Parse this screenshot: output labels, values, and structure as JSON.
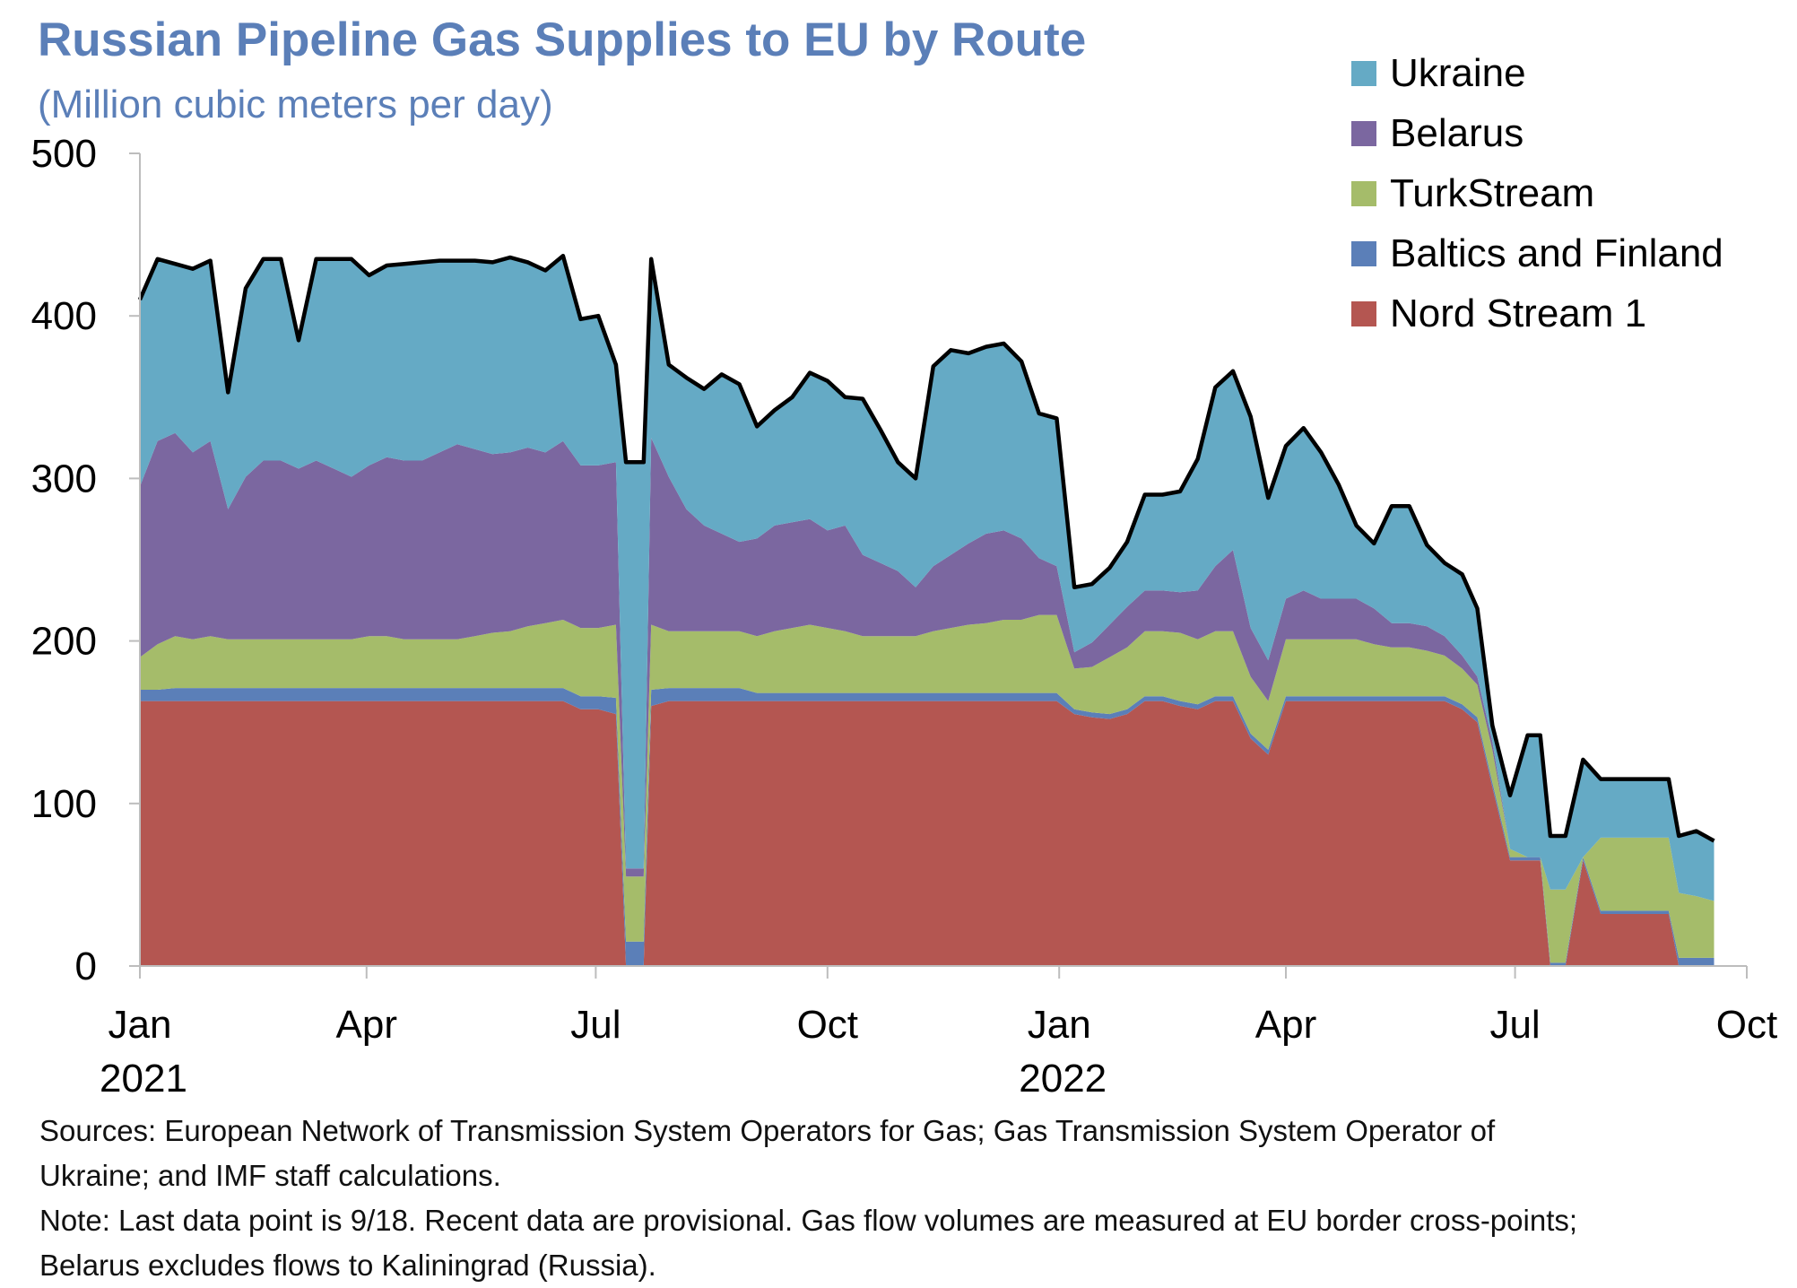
{
  "chart_data": {
    "type": "area",
    "stacked": true,
    "title": "Russian Pipeline Gas Supplies to EU by Route",
    "subtitle": "(Million cubic meters per day)",
    "ylim": [
      0,
      500
    ],
    "yticks": [
      0,
      100,
      200,
      300,
      400,
      500
    ],
    "xlim": [
      "2021-01-01",
      "2022-10-01"
    ],
    "xticks": [
      {
        "date": "2021-01-01",
        "label": "Jan",
        "year": "2021"
      },
      {
        "date": "2021-04-01",
        "label": "Apr",
        "year": ""
      },
      {
        "date": "2021-07-01",
        "label": "Jul",
        "year": ""
      },
      {
        "date": "2021-10-01",
        "label": "Oct",
        "year": ""
      },
      {
        "date": "2022-01-01",
        "label": "Jan",
        "year": "2022"
      },
      {
        "date": "2022-04-01",
        "label": "Apr",
        "year": ""
      },
      {
        "date": "2022-07-01",
        "label": "Jul",
        "year": ""
      },
      {
        "date": "2022-10-01",
        "label": "Oct",
        "year": ""
      }
    ],
    "grid": false,
    "legend_position": "top-right",
    "legend_order": [
      "Ukraine",
      "Belarus",
      "TurkStream",
      "Baltics and Finland",
      "Nord Stream 1"
    ],
    "x": [
      "2021-01-01",
      "2021-01-08",
      "2021-01-15",
      "2021-01-22",
      "2021-01-29",
      "2021-02-05",
      "2021-02-12",
      "2021-02-19",
      "2021-02-26",
      "2021-03-05",
      "2021-03-12",
      "2021-03-19",
      "2021-03-26",
      "2021-04-02",
      "2021-04-09",
      "2021-04-16",
      "2021-04-23",
      "2021-04-30",
      "2021-05-07",
      "2021-05-14",
      "2021-05-21",
      "2021-05-28",
      "2021-06-04",
      "2021-06-11",
      "2021-06-18",
      "2021-06-25",
      "2021-07-02",
      "2021-07-09",
      "2021-07-13",
      "2021-07-16",
      "2021-07-20",
      "2021-07-23",
      "2021-07-30",
      "2021-08-06",
      "2021-08-13",
      "2021-08-20",
      "2021-08-27",
      "2021-09-03",
      "2021-09-10",
      "2021-09-17",
      "2021-09-24",
      "2021-10-01",
      "2021-10-08",
      "2021-10-15",
      "2021-10-22",
      "2021-10-29",
      "2021-11-05",
      "2021-11-12",
      "2021-11-19",
      "2021-11-26",
      "2021-12-03",
      "2021-12-10",
      "2021-12-17",
      "2021-12-24",
      "2021-12-31",
      "2022-01-07",
      "2022-01-14",
      "2022-01-21",
      "2022-01-28",
      "2022-02-04",
      "2022-02-11",
      "2022-02-18",
      "2022-02-25",
      "2022-03-04",
      "2022-03-11",
      "2022-03-18",
      "2022-03-25",
      "2022-04-01",
      "2022-04-08",
      "2022-04-15",
      "2022-04-22",
      "2022-04-29",
      "2022-05-06",
      "2022-05-13",
      "2022-05-20",
      "2022-05-27",
      "2022-06-03",
      "2022-06-10",
      "2022-06-16",
      "2022-06-22",
      "2022-06-29",
      "2022-07-06",
      "2022-07-11",
      "2022-07-15",
      "2022-07-21",
      "2022-07-28",
      "2022-08-04",
      "2022-08-11",
      "2022-08-18",
      "2022-08-25",
      "2022-08-31",
      "2022-09-04",
      "2022-09-11",
      "2022-09-18"
    ],
    "series": [
      {
        "name": "Nord Stream 1",
        "color": "#B45651",
        "values": [
          163,
          163,
          163,
          163,
          163,
          163,
          163,
          163,
          163,
          163,
          163,
          163,
          163,
          163,
          163,
          163,
          163,
          163,
          163,
          163,
          163,
          163,
          163,
          163,
          163,
          158,
          158,
          155,
          0,
          0,
          0,
          160,
          163,
          163,
          163,
          163,
          163,
          163,
          163,
          163,
          163,
          163,
          163,
          163,
          163,
          163,
          163,
          163,
          163,
          163,
          163,
          163,
          163,
          163,
          163,
          155,
          153,
          152,
          155,
          163,
          163,
          160,
          158,
          163,
          163,
          140,
          130,
          163,
          163,
          163,
          163,
          163,
          163,
          163,
          163,
          163,
          163,
          158,
          150,
          110,
          65,
          65,
          65,
          0,
          0,
          65,
          32,
          32,
          32,
          32,
          32,
          0,
          0,
          0
        ]
      },
      {
        "name": "Baltics and Finland",
        "color": "#5B7FB8",
        "values": [
          7,
          7,
          8,
          8,
          8,
          8,
          8,
          8,
          8,
          8,
          8,
          8,
          8,
          8,
          8,
          8,
          8,
          8,
          8,
          8,
          8,
          8,
          8,
          8,
          8,
          8,
          8,
          10,
          15,
          15,
          15,
          10,
          8,
          8,
          8,
          8,
          8,
          5,
          5,
          5,
          5,
          5,
          5,
          5,
          5,
          5,
          5,
          5,
          5,
          5,
          5,
          5,
          5,
          5,
          5,
          3,
          3,
          3,
          3,
          3,
          3,
          3,
          3,
          3,
          3,
          3,
          3,
          3,
          3,
          3,
          3,
          3,
          3,
          3,
          3,
          3,
          3,
          3,
          3,
          3,
          2,
          2,
          2,
          2,
          2,
          2,
          2,
          2,
          2,
          2,
          2,
          5,
          5,
          5
        ]
      },
      {
        "name": "TurkStream",
        "color": "#A5BC6A",
        "values": [
          20,
          28,
          32,
          30,
          32,
          30,
          30,
          30,
          30,
          30,
          30,
          30,
          30,
          32,
          32,
          30,
          30,
          30,
          30,
          32,
          34,
          35,
          38,
          40,
          42,
          42,
          42,
          45,
          40,
          40,
          40,
          40,
          35,
          35,
          35,
          35,
          35,
          35,
          38,
          40,
          42,
          40,
          38,
          35,
          35,
          35,
          35,
          38,
          40,
          42,
          43,
          45,
          45,
          48,
          48,
          25,
          28,
          35,
          38,
          40,
          40,
          42,
          40,
          40,
          40,
          35,
          30,
          35,
          35,
          35,
          35,
          35,
          32,
          30,
          30,
          28,
          25,
          22,
          20,
          20,
          5,
          0,
          0,
          45,
          45,
          0,
          45,
          45,
          45,
          45,
          45,
          40,
          38,
          35
        ]
      },
      {
        "name": "Belarus",
        "color": "#7B67A0",
        "values": [
          105,
          125,
          125,
          115,
          120,
          80,
          100,
          110,
          110,
          105,
          110,
          105,
          100,
          105,
          110,
          110,
          110,
          115,
          120,
          115,
          110,
          110,
          110,
          105,
          110,
          100,
          100,
          100,
          5,
          5,
          5,
          115,
          95,
          75,
          65,
          60,
          55,
          60,
          65,
          65,
          65,
          60,
          65,
          50,
          45,
          40,
          30,
          40,
          45,
          50,
          55,
          55,
          50,
          35,
          30,
          10,
          15,
          20,
          25,
          25,
          25,
          25,
          30,
          40,
          50,
          30,
          25,
          25,
          30,
          25,
          25,
          25,
          22,
          15,
          15,
          15,
          12,
          8,
          5,
          5,
          0,
          0,
          0,
          0,
          0,
          0,
          0,
          0,
          0,
          0,
          0,
          0,
          0,
          0
        ]
      },
      {
        "name": "Ukraine",
        "color": "#65AAC5",
        "values": [
          115,
          112,
          104,
          113,
          111,
          72,
          116,
          124,
          124,
          79,
          124,
          129,
          134,
          117,
          118,
          121,
          122,
          118,
          113,
          116,
          118,
          120,
          114,
          112,
          114,
          90,
          92,
          60,
          250,
          250,
          250,
          110,
          69,
          81,
          84,
          98,
          97,
          69,
          71,
          77,
          90,
          92,
          79,
          96,
          82,
          67,
          67,
          123,
          126,
          117,
          115,
          115,
          109,
          89,
          91,
          40,
          36,
          35,
          40,
          59,
          59,
          62,
          81,
          110,
          110,
          130,
          100,
          94,
          100,
          90,
          70,
          45,
          40,
          72,
          72,
          50,
          45,
          50,
          42,
          10,
          33,
          75,
          75,
          33,
          33,
          60,
          36,
          36,
          36,
          36,
          36,
          35,
          40,
          37
        ]
      }
    ]
  },
  "legend": {
    "items": [
      {
        "label": "Ukraine",
        "color": "#65AAC5"
      },
      {
        "label": "Belarus",
        "color": "#7B67A0"
      },
      {
        "label": "TurkStream",
        "color": "#A5BC6A"
      },
      {
        "label": "Baltics and Finland",
        "color": "#5B7FB8"
      },
      {
        "label": "Nord Stream 1",
        "color": "#B45651"
      }
    ]
  },
  "notes": {
    "sources_line1": "Sources: European Network of Transmission System Operators for Gas; Gas Transmission System Operator of",
    "sources_line2": "Ukraine; and IMF staff calculations.",
    "note_line1": "Note: Last data point is 9/18. Recent data are provisional. Gas flow volumes are measured at EU border cross-points;",
    "note_line2": "Belarus excludes flows to Kaliningrad (Russia)."
  }
}
